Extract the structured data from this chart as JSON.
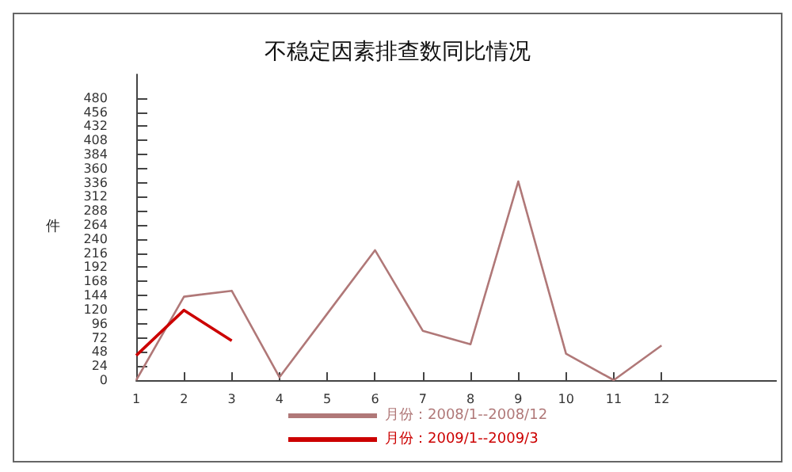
{
  "chart_data": {
    "type": "line",
    "title": "不稳定因素排查数同比情况",
    "ylabel": "件",
    "x": [
      1,
      2,
      3,
      4,
      5,
      6,
      7,
      8,
      9,
      10,
      11,
      12
    ],
    "xlim": [
      1,
      14.4
    ],
    "xticks": [
      1,
      2,
      3,
      4,
      5,
      6,
      7,
      8,
      9,
      10,
      11,
      12
    ],
    "ylim": [
      0,
      520
    ],
    "yticks": [
      0,
      24,
      48,
      72,
      96,
      120,
      144,
      168,
      192,
      216,
      240,
      264,
      288,
      312,
      336,
      360,
      384,
      408,
      432,
      456,
      480
    ],
    "series": [
      {
        "name": "月份：2008/1--2008/12",
        "color": "#b07878",
        "values": [
          0,
          142,
          152,
          5,
          113,
          221,
          84,
          61,
          338,
          45,
          0,
          59
        ]
      },
      {
        "name": "月份：2009/1--2009/3",
        "color": "#cc0000",
        "values": [
          42,
          119,
          67,
          null,
          null,
          null,
          null,
          null,
          null,
          null,
          null,
          null
        ]
      }
    ],
    "grid": false,
    "legend": "bottom",
    "marker": "none",
    "line_style": "solid"
  }
}
